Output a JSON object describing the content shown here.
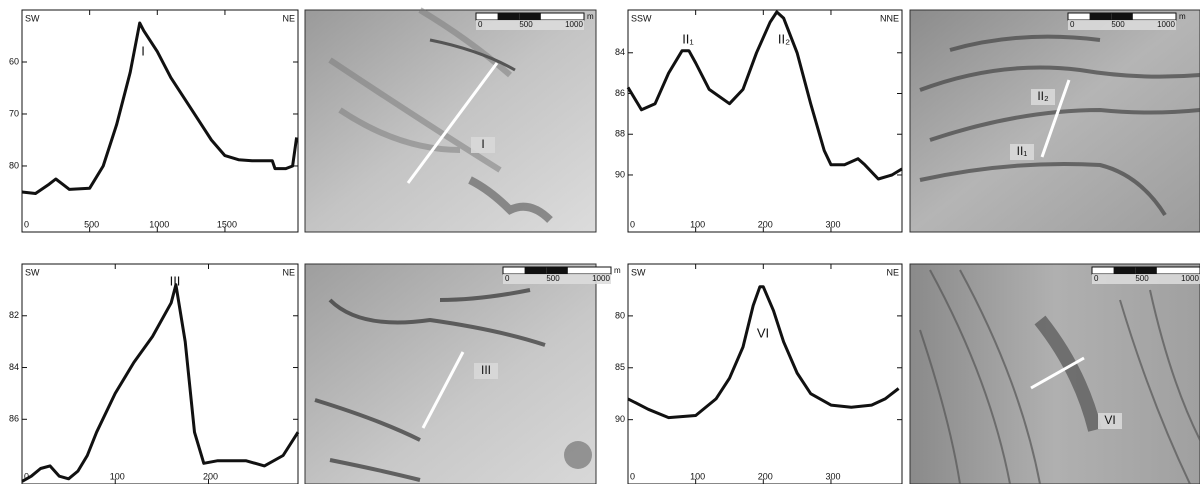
{
  "chart_data": [
    {
      "type": "line",
      "left_label": "SW",
      "right_label": "NE",
      "annotations": [
        "I"
      ],
      "color": "#111111",
      "x": [
        0,
        100,
        200,
        250,
        300,
        350,
        500,
        600,
        700,
        800,
        870,
        900,
        1000,
        1100,
        1200,
        1300,
        1400,
        1500,
        1600,
        1700,
        1800,
        1850,
        1870,
        1950,
        2000,
        2030
      ],
      "values": [
        85,
        85.3,
        83.5,
        82.5,
        83.5,
        84.5,
        84.3,
        80,
        72,
        62,
        52.5,
        54,
        58,
        63,
        67,
        71,
        75,
        78,
        78.8,
        79,
        79,
        79,
        80.5,
        80.5,
        80,
        74.5
      ],
      "xlim": [
        0,
        2040
      ],
      "ylim": [
        92.7,
        50
      ],
      "xticks": [
        0,
        500,
        1000,
        1500
      ],
      "yticks": [
        60,
        70,
        80
      ]
    },
    {
      "type": "line",
      "left_label": "SSW",
      "right_label": "NNE",
      "annotations": [
        "II₁",
        "II₂"
      ],
      "color": "#111111",
      "x": [
        0,
        20,
        40,
        60,
        80,
        90,
        100,
        120,
        150,
        170,
        190,
        210,
        220,
        230,
        250,
        270,
        290,
        300,
        320,
        340,
        350,
        370,
        390,
        405
      ],
      "values": [
        85.7,
        86.8,
        86.5,
        85,
        83.9,
        83.9,
        84.5,
        85.8,
        86.5,
        85.8,
        84,
        82.5,
        82,
        82.3,
        84,
        86.5,
        88.8,
        89.5,
        89.5,
        89.2,
        89.5,
        90.2,
        90,
        89.7
      ],
      "xlim": [
        0,
        405
      ],
      "ylim": [
        92.8,
        81.9
      ],
      "xticks": [
        0,
        100,
        200,
        300
      ],
      "yticks": [
        84,
        86,
        88,
        90
      ]
    },
    {
      "type": "line",
      "left_label": "SW",
      "right_label": "NE",
      "annotations": [
        "III"
      ],
      "color": "#111111",
      "x": [
        0,
        10,
        20,
        30,
        40,
        50,
        60,
        70,
        80,
        100,
        120,
        140,
        160,
        165,
        175,
        185,
        195,
        210,
        240,
        260,
        280,
        296
      ],
      "values": [
        88.4,
        88.2,
        87.9,
        87.8,
        88.2,
        88.3,
        88,
        87.4,
        86.5,
        85,
        83.8,
        82.8,
        81.5,
        80.8,
        83,
        86.5,
        87.7,
        87.6,
        87.6,
        87.8,
        87.4,
        86.5
      ],
      "xlim": [
        0,
        296
      ],
      "ylim": [
        88.5,
        80
      ],
      "xticks": [
        0,
        100,
        200
      ],
      "yticks": [
        82,
        84,
        86
      ]
    },
    {
      "type": "line",
      "left_label": "SW",
      "right_label": "NE",
      "annotations": [
        "VI"
      ],
      "color": "#111111",
      "x": [
        0,
        30,
        60,
        100,
        130,
        150,
        170,
        185,
        195,
        200,
        215,
        230,
        250,
        270,
        300,
        330,
        360,
        380,
        400
      ],
      "values": [
        88,
        89,
        89.8,
        89.6,
        88,
        86,
        83,
        79,
        77.2,
        77.2,
        79.5,
        82.5,
        85.5,
        87.5,
        88.6,
        88.8,
        88.6,
        88,
        87
      ],
      "xlim": [
        0,
        405
      ],
      "ylim": [
        96.2,
        75
      ],
      "xticks": [
        0,
        100,
        200,
        300
      ],
      "yticks": [
        80,
        85,
        90
      ]
    }
  ],
  "images": [
    {
      "labels": [
        "I"
      ],
      "scale_labels": [
        "0",
        "500",
        "1000"
      ],
      "unit": "m"
    },
    {
      "labels": [
        "II₂",
        "II₁"
      ],
      "scale_labels": [
        "0",
        "500",
        "1000"
      ],
      "unit": "m"
    },
    {
      "labels": [
        "III"
      ],
      "scale_labels": [
        "0",
        "500",
        "1000"
      ],
      "unit": "m"
    },
    {
      "labels": [
        "VI"
      ],
      "scale_labels": [
        "0",
        "500",
        "1000"
      ],
      "unit": "m"
    }
  ]
}
